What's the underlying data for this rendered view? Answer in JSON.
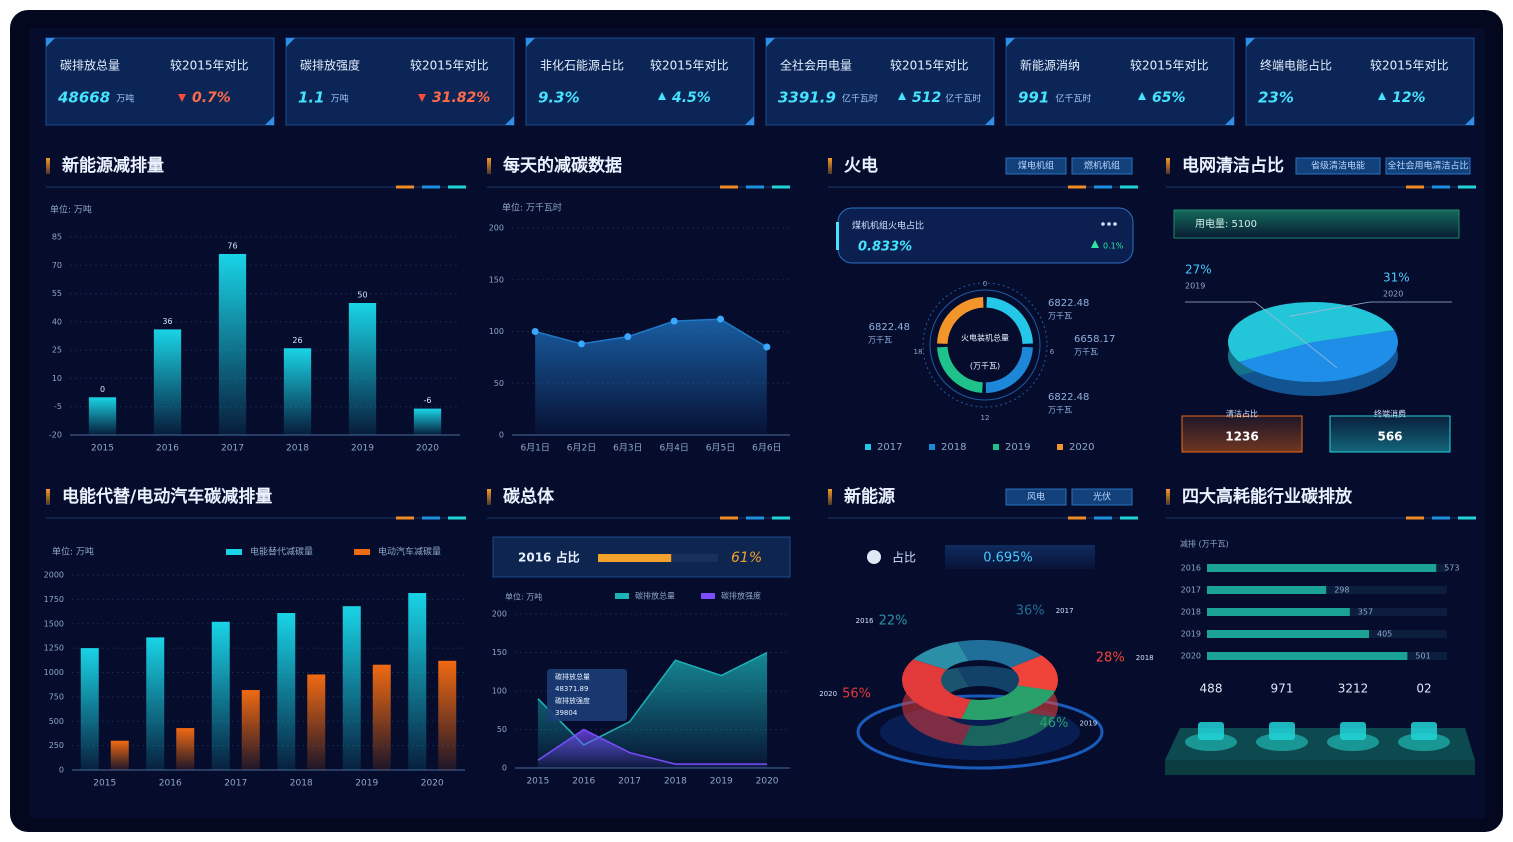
{
  "kpis": [
    {
      "title": "碳排放总量",
      "compare": "较2015年对比",
      "value": "48668",
      "unit": "万吨",
      "change": "0.7%",
      "trend": "down"
    },
    {
      "title": "碳排放强度",
      "compare": "较2015年对比",
      "value": "1.1",
      "unit": "万吨",
      "change": "31.82%",
      "trend": "down"
    },
    {
      "title": "非化石能源占比",
      "compare": "较2015年对比",
      "value": "9.3%",
      "change": "4.5%",
      "trend": "up"
    },
    {
      "title": "全社会用电量",
      "compare": "较2015年对比",
      "value": "3391.9",
      "unit": "亿千瓦时",
      "change": "512",
      "change_unit": "亿千瓦时",
      "trend": "up"
    },
    {
      "title": "新能源消纳",
      "compare": "较2015年对比",
      "value": "991",
      "unit": "亿千瓦时",
      "change": "65%",
      "trend": "up"
    },
    {
      "title": "终端电能占比",
      "compare": "较2015年对比",
      "value": "23%",
      "change": "12%",
      "trend": "up"
    }
  ],
  "emission_reduction": {
    "type": "bar",
    "title": "新能源减排量",
    "unit": "单位: 万吨",
    "categories": [
      "2015",
      "2016",
      "2017",
      "2018",
      "2019",
      "2020"
    ],
    "values": [
      0,
      36,
      76,
      26,
      50,
      -6
    ],
    "color": "#19d4e6",
    "ylim": [
      -20,
      85
    ],
    "yticks": [
      -20,
      -5,
      10,
      25,
      40,
      55,
      70,
      85
    ]
  },
  "daily_reduction": {
    "type": "area",
    "title": "每天的减碳数据",
    "unit": "单位: 万千瓦时",
    "categories": [
      "6月1日",
      "6月2日",
      "6月3日",
      "6月4日",
      "6月5日",
      "6月6日"
    ],
    "values": [
      100,
      88,
      95,
      110,
      112,
      85
    ],
    "color": "#1f78c8",
    "ylim": [
      0,
      200
    ],
    "yticks": [
      0,
      50,
      100,
      150,
      200
    ]
  },
  "thermal": {
    "title": "火电",
    "tabs": [
      "煤电机组",
      "燃机机组"
    ],
    "card_label": "煤机机组火电占比",
    "card_value": "0.833%",
    "card_change": "0.1%",
    "center_label": "火电装机总量",
    "center_unit": "(万千瓦)",
    "dial_ticks": [
      "0",
      "6",
      "12",
      "18"
    ],
    "donut": {
      "type": "pie",
      "categories": [
        "2017",
        "2018",
        "2019",
        "2020"
      ],
      "values": [
        6822.48,
        6822.48,
        6658.17,
        6822.48
      ],
      "colors": [
        "#25c7e8",
        "#1e88d8",
        "#1fc28a",
        "#f2962c"
      ],
      "unit": "万千瓦"
    }
  },
  "clean_ratio": {
    "title": "电网清洁占比",
    "tabs": [
      "省级清洁电能",
      "全社会用电清洁占比"
    ],
    "usage": "用电量: 5100",
    "pie": {
      "type": "pie",
      "categories": [
        "2019",
        "2020"
      ],
      "values": [
        27,
        31
      ],
      "value_labels": [
        "27%",
        "31%"
      ],
      "colors": [
        "#1e8ee8",
        "#22c6d8"
      ]
    },
    "boxes": [
      {
        "label": "清洁占比",
        "value": "1236"
      },
      {
        "label": "终端消费",
        "value": "566"
      }
    ]
  },
  "substitution": {
    "type": "grouped_bar",
    "title": "电能代替/电动汽车碳减排量",
    "unit": "单位: 万吨",
    "categories": [
      "2015",
      "2016",
      "2017",
      "2018",
      "2019",
      "2020"
    ],
    "series": [
      {
        "name": "电能替代减碳量",
        "color": "#19d4e6",
        "values": [
          1250,
          1360,
          1520,
          1610,
          1680,
          1815
        ]
      },
      {
        "name": "电动汽车减碳量",
        "color": "#f06a12",
        "values": [
          300,
          430,
          820,
          980,
          1080,
          1120
        ]
      }
    ],
    "ylim": [
      0,
      2000
    ],
    "yticks": [
      0,
      250,
      500,
      750,
      1000,
      1250,
      1500,
      1750,
      2000
    ]
  },
  "carbon_total": {
    "type": "area",
    "title": "碳总体",
    "progress": {
      "label": "2016 占比",
      "value": 61,
      "value_label": "61%"
    },
    "unit": "单位: 万吨",
    "categories": [
      "2015",
      "2016",
      "2017",
      "2018",
      "2019",
      "2020"
    ],
    "series": [
      {
        "name": "碳排放总量",
        "color": "#1bb3b8",
        "values": [
          90,
          30,
          60,
          140,
          120,
          150
        ]
      },
      {
        "name": "碳排放强度",
        "color": "#7b4dff",
        "values": [
          10,
          50,
          20,
          5,
          5,
          5
        ]
      }
    ],
    "ylim": [
      0,
      200
    ],
    "yticks": [
      0,
      50,
      100,
      150,
      200
    ],
    "tooltip": [
      "碳排放总量",
      "48371.89",
      "碳排放强度",
      "39804"
    ]
  },
  "new_energy": {
    "title": "新能源",
    "tabs": [
      "风电",
      "光伏"
    ],
    "ratio_label": "占比",
    "ratio_value": "0.695%",
    "pie": {
      "type": "pie",
      "categories": [
        "2016",
        "2017",
        "2018",
        "2019",
        "2020"
      ],
      "values": [
        22,
        36,
        28,
        46,
        56
      ],
      "value_labels": [
        "22%",
        "36%",
        "28%",
        "46%",
        "56%"
      ],
      "colors": [
        "#2b8fa8",
        "#1f6f9a",
        "#f0443a",
        "#2aa06a",
        "#e23a3a"
      ]
    }
  },
  "industry": {
    "type": "hbar",
    "title": "四大高耗能行业碳排放",
    "unit": "减排 (万千瓦)",
    "categories": [
      "2016",
      "2017",
      "2018",
      "2019",
      "2020"
    ],
    "values": [
      573,
      298,
      357,
      405,
      501
    ],
    "color": "#1aa394",
    "xlim": [
      0,
      600
    ],
    "stats": [
      "488",
      "971",
      "3212",
      "02"
    ]
  }
}
